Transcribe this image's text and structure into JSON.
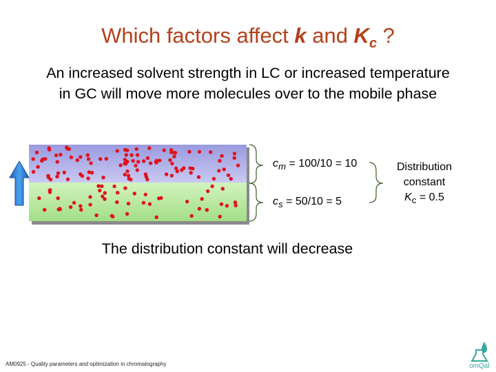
{
  "title": {
    "prefix": "Which factors affect ",
    "k": "k",
    "mid": " and ",
    "K": "K",
    "sub": "c",
    "suffix": " ?"
  },
  "intro": "An increased solvent strength in LC or increased temperature in GC will move more molecules over to the mobile phase",
  "equations": {
    "mobile": {
      "symbol": "c",
      "sub": "m",
      "expr": " = 100/10 = 10"
    },
    "stationary": {
      "symbol": "c",
      "sub": "s",
      "expr": " = 50/10 = 5"
    }
  },
  "distribution": {
    "line1": "Distribution",
    "line2": "constant",
    "symbol": "K",
    "sub": "c",
    "expr": " = 0.5"
  },
  "conclusion": "The distribution constant will decrease",
  "footer": "AM0925 - Quality parameters and optimization in chromatography",
  "logo_text": "omQal",
  "colors": {
    "title": "#b5401a",
    "mobile_phase": "#a8a8e6",
    "stationary_phase": "#b8eaa0",
    "molecule": "#e0111b",
    "arrow": "#2e7fd6"
  }
}
